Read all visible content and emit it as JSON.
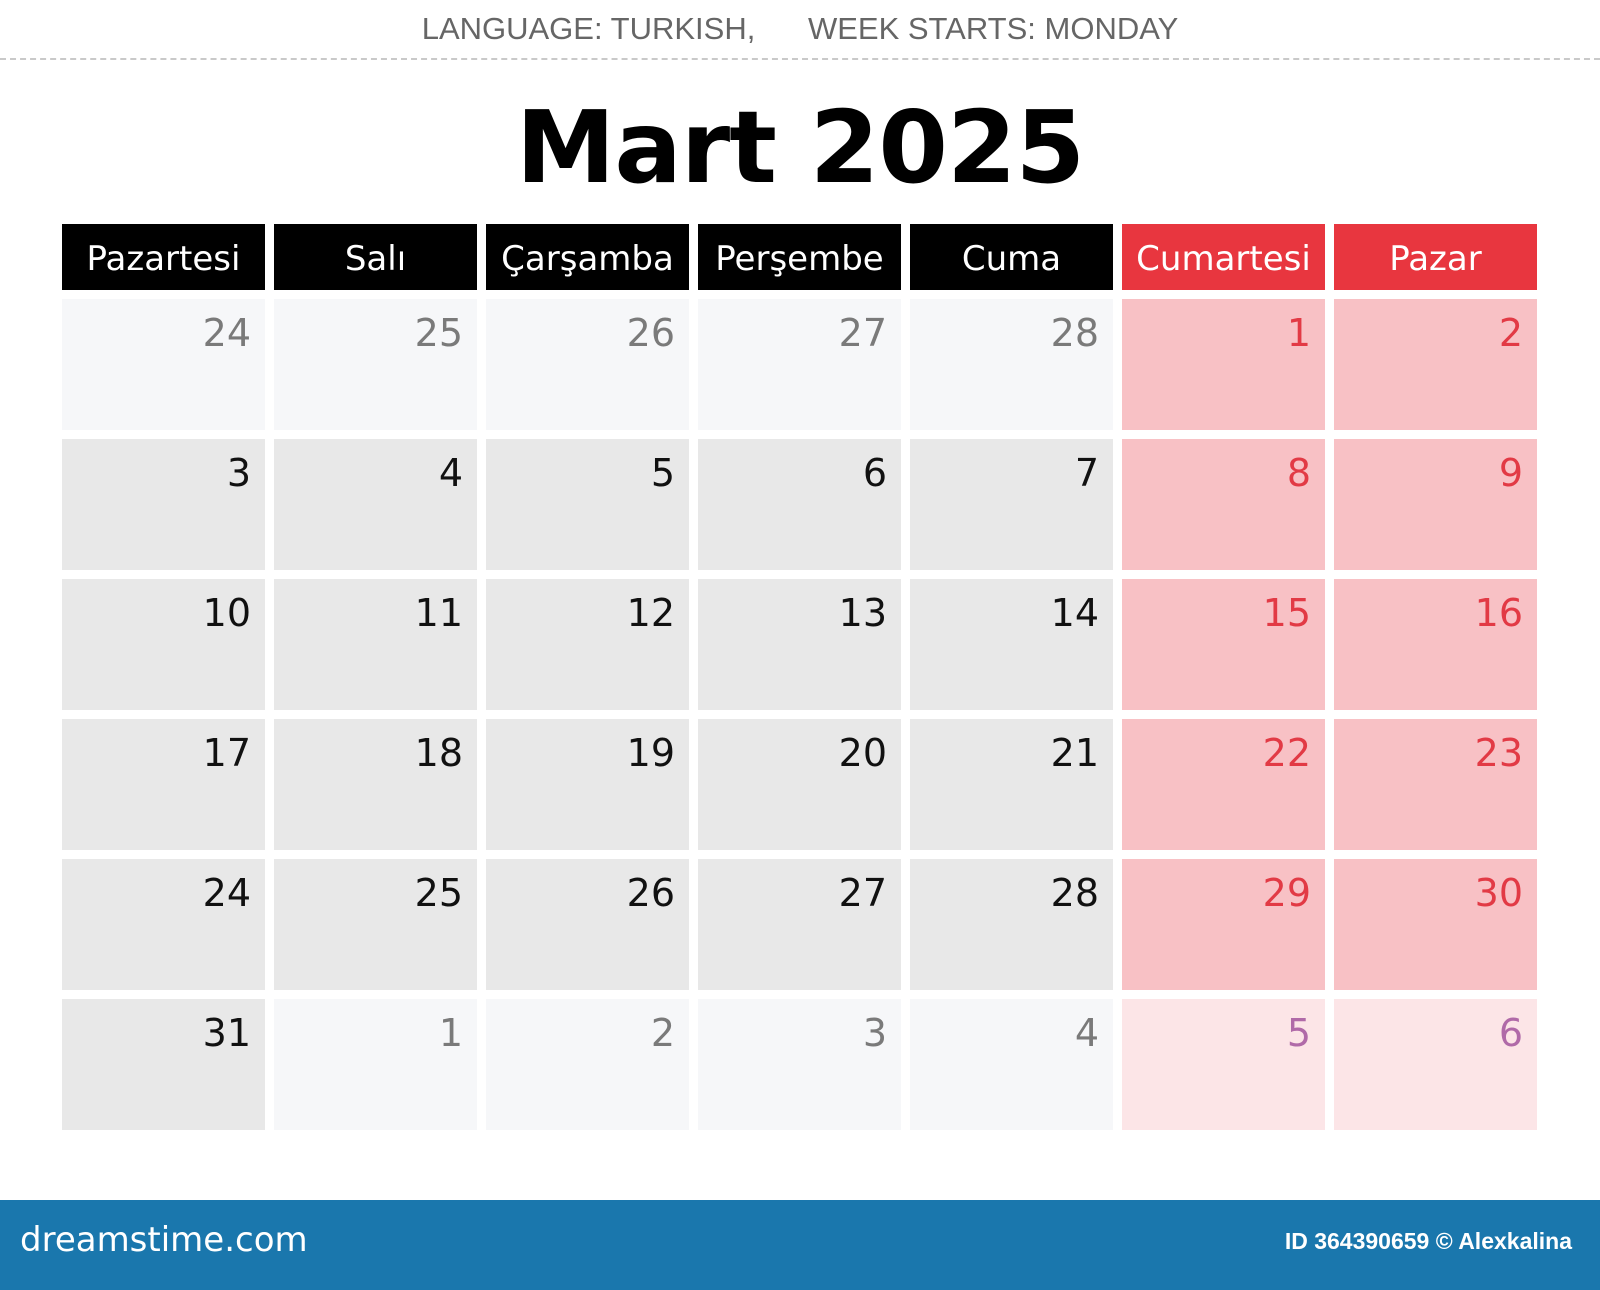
{
  "header": {
    "language": "LANGUAGE: TURKISH,",
    "week_start": "WEEK STARTS: MONDAY"
  },
  "calendar": {
    "title": "Mart 2025",
    "weekdays": [
      "Pazartesi",
      "Salı",
      "Çarşamba",
      "Perşembe",
      "Cuma",
      "Cumartesi",
      "Pazar"
    ],
    "weeks": [
      [
        {
          "d": "24",
          "out": true
        },
        {
          "d": "25",
          "out": true
        },
        {
          "d": "26",
          "out": true
        },
        {
          "d": "27",
          "out": true
        },
        {
          "d": "28",
          "out": true
        },
        {
          "d": "1",
          "out": false
        },
        {
          "d": "2",
          "out": false
        }
      ],
      [
        {
          "d": "3",
          "out": false
        },
        {
          "d": "4",
          "out": false
        },
        {
          "d": "5",
          "out": false
        },
        {
          "d": "6",
          "out": false
        },
        {
          "d": "7",
          "out": false
        },
        {
          "d": "8",
          "out": false
        },
        {
          "d": "9",
          "out": false
        }
      ],
      [
        {
          "d": "10",
          "out": false
        },
        {
          "d": "11",
          "out": false
        },
        {
          "d": "12",
          "out": false
        },
        {
          "d": "13",
          "out": false
        },
        {
          "d": "14",
          "out": false
        },
        {
          "d": "15",
          "out": false
        },
        {
          "d": "16",
          "out": false
        }
      ],
      [
        {
          "d": "17",
          "out": false
        },
        {
          "d": "18",
          "out": false
        },
        {
          "d": "19",
          "out": false
        },
        {
          "d": "20",
          "out": false
        },
        {
          "d": "21",
          "out": false
        },
        {
          "d": "22",
          "out": false
        },
        {
          "d": "23",
          "out": false
        }
      ],
      [
        {
          "d": "24",
          "out": false
        },
        {
          "d": "25",
          "out": false
        },
        {
          "d": "26",
          "out": false
        },
        {
          "d": "27",
          "out": false
        },
        {
          "d": "28",
          "out": false
        },
        {
          "d": "29",
          "out": false
        },
        {
          "d": "30",
          "out": false
        }
      ],
      [
        {
          "d": "31",
          "out": false
        },
        {
          "d": "1",
          "out": true
        },
        {
          "d": "2",
          "out": true
        },
        {
          "d": "3",
          "out": true
        },
        {
          "d": "4",
          "out": true
        },
        {
          "d": "5",
          "out": true
        },
        {
          "d": "6",
          "out": true
        }
      ]
    ]
  },
  "colors": {
    "header_bg": "#000000",
    "weekend_header_bg": "#e8363f",
    "weekday_cell": "#e8e8e8",
    "weekend_cell": "#f8c1c5",
    "weekend_text": "#e23a45",
    "footer_bg": "#1a77ad"
  },
  "footer": {
    "brand": "dreamstime.com",
    "credit": "ID 364390659 © Alexkalina"
  }
}
